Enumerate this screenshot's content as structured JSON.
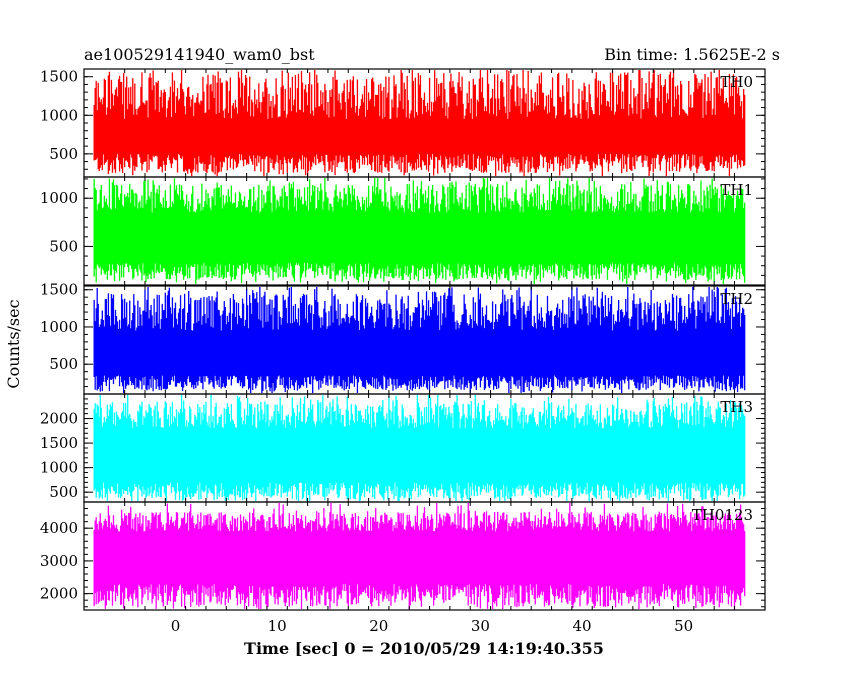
{
  "header": {
    "title": "ae100529141940_wam0_bst",
    "bin_time": "Bin time: 1.5625E-2 s"
  },
  "chart_data": {
    "type": "line",
    "title": "ae100529141940_wam0_bst",
    "xlabel": "Time [sec] 0 = 2010/05/29 14:19:40.355",
    "ylabel": "Counts/sec",
    "xlim": [
      -9,
      58
    ],
    "data_x_range": [
      -8,
      56
    ],
    "x_ticks": [
      0,
      10,
      20,
      30,
      40,
      50
    ],
    "x_tick_labels": [
      "0",
      "10",
      "20",
      "30",
      "40",
      "50"
    ],
    "grid": false,
    "series": [
      {
        "name": "TH0",
        "color": "#ff0000",
        "ylim": [
          200,
          1600
        ],
        "y_ticks": [
          500,
          1000,
          1500
        ],
        "y_tick_labels": [
          "500",
          "1000",
          "1500"
        ],
        "low_range": [
          250,
          500
        ],
        "high_range": [
          950,
          1550
        ],
        "spike_max": 1600
      },
      {
        "name": "TH1",
        "color": "#00ff00",
        "ylim": [
          100,
          1220
        ],
        "y_ticks": [
          500,
          1000
        ],
        "y_tick_labels": [
          "500",
          "1000"
        ],
        "low_range": [
          150,
          330
        ],
        "high_range": [
          850,
          1150
        ],
        "spike_max": 1220
      },
      {
        "name": "TH2",
        "color": "#0000ff",
        "ylim": [
          100,
          1550
        ],
        "y_ticks": [
          500,
          1000,
          1500
        ],
        "y_tick_labels": [
          "500",
          "1000",
          "1500"
        ],
        "low_range": [
          150,
          350
        ],
        "high_range": [
          950,
          1450
        ],
        "spike_max": 1550
      },
      {
        "name": "TH3",
        "color": "#00ffff",
        "ylim": [
          300,
          2500
        ],
        "y_ticks": [
          500,
          1000,
          1500,
          2000
        ],
        "y_tick_labels": [
          "500",
          "1000",
          "1500",
          "2000"
        ],
        "low_range": [
          350,
          700
        ],
        "high_range": [
          1800,
          2350
        ],
        "spike_max": 2500
      },
      {
        "name": "TH0123",
        "color": "#ff00ff",
        "ylim": [
          1500,
          4800
        ],
        "y_ticks": [
          2000,
          3000,
          4000
        ],
        "y_tick_labels": [
          "2000",
          "3000",
          "4000"
        ],
        "low_range": [
          1600,
          2300
        ],
        "high_range": [
          3900,
          4500
        ],
        "spike_max": 4800
      }
    ]
  }
}
